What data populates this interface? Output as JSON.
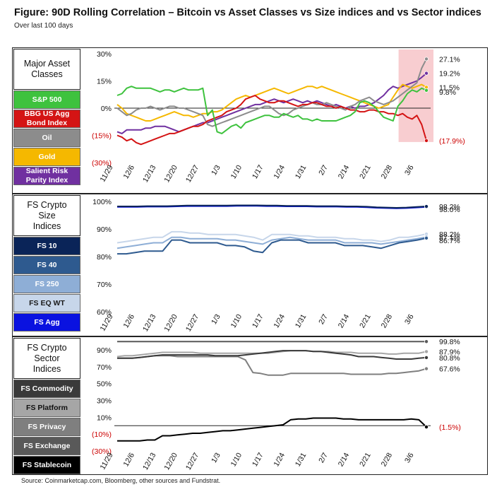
{
  "title": "Figure: 90D Rolling Correlation – Bitcoin vs Asset Classes vs Size indices and vs Sector indices",
  "subtitle": "Over last 100 days",
  "source": "Source: Coinmarketcap.com, Bloomberg, other sources and Fundstrat.",
  "colors": {
    "highlight": "#f8cdd0",
    "zero_line": "#222222"
  },
  "chart_data": [
    {
      "type": "line",
      "title": "Major Asset Classes",
      "x_tick_labels": [
        "11/29",
        "12/6",
        "12/13",
        "12/20",
        "12/27",
        "1/3",
        "1/10",
        "1/17",
        "1/24",
        "1/31",
        "2/7",
        "2/14",
        "2/21",
        "2/28",
        "3/6"
      ],
      "x_range": [
        0,
        100
      ],
      "y_range": [
        -30,
        30
      ],
      "y_ticks": [
        30,
        15,
        0,
        -15,
        -30
      ],
      "y_tick_labels": [
        "30%",
        "15%",
        "0%",
        "(15%)",
        "(30%)"
      ],
      "highlight_x_range": [
        91,
        100
      ],
      "end_labels": [
        {
          "text": "27.1%",
          "value": 27.1,
          "color": "#111111"
        },
        {
          "text": "19.2%",
          "value": 19.2,
          "color": "#111111"
        },
        {
          "text": "11.5%",
          "value": 11.5,
          "color": "#111111"
        },
        {
          "text": "9.8%",
          "value": 9.8,
          "color": "#111111"
        },
        {
          "text": "(17.9%)",
          "value": -17.9,
          "color": "#cc0000"
        }
      ],
      "series": [
        {
          "name": "S&P 500",
          "color": "#3ec23e",
          "text_color": "#ffffff",
          "values": [
            7,
            8,
            11,
            12,
            11,
            11,
            11,
            11,
            10,
            9,
            10,
            10,
            9,
            10,
            11,
            10,
            10,
            10,
            11,
            -4,
            -1,
            -13,
            -14,
            -12,
            -10,
            -9,
            -11,
            -8,
            -7,
            -6,
            -5,
            -4,
            -4,
            -5,
            -5,
            -3,
            -4,
            -5,
            -4,
            -6,
            -6,
            -7,
            -6,
            -7,
            -7,
            -7,
            -7,
            -6,
            -5,
            -4,
            -2,
            3,
            4,
            3,
            1,
            -2,
            -5,
            -6,
            -7,
            1,
            4,
            8,
            10,
            9,
            11,
            9.8
          ]
        },
        {
          "name": "BBG US Agg\nBond Index",
          "color": "#d41414",
          "text_color": "#ffffff",
          "values": [
            -15,
            -16,
            -18,
            -17,
            -19,
            -20,
            -19,
            -18,
            -17,
            -16,
            -15,
            -14,
            -14,
            -13,
            -12,
            -11,
            -10,
            -10,
            -9,
            -7,
            -6,
            -5,
            -4,
            -2,
            -1,
            0,
            2,
            5,
            6,
            7,
            5,
            4,
            3,
            3,
            4,
            4,
            3,
            2,
            1,
            2,
            2,
            3,
            3,
            2,
            1,
            1,
            0,
            1,
            0,
            -1,
            -1,
            -2,
            -2,
            -1,
            -1,
            -2,
            -2,
            -3,
            -3,
            -4,
            -3,
            -5,
            -6,
            -4,
            -9,
            -17.9
          ]
        },
        {
          "name": "Oil",
          "color": "#8c8c8c",
          "text_color": "#ffffff",
          "values": [
            0,
            -2,
            -4,
            -3,
            -1,
            0,
            0,
            1,
            0,
            -1,
            0,
            1,
            1,
            0,
            0,
            -1,
            -2,
            -3,
            -4,
            -9,
            -10,
            -9,
            -8,
            -7,
            -6,
            -5,
            -4,
            -3,
            -2,
            -1,
            0,
            1,
            1,
            -1,
            -3,
            -4,
            -3,
            -1,
            0,
            1,
            2,
            3,
            2,
            2,
            3,
            2,
            1,
            0,
            -1,
            1,
            2,
            4,
            5,
            6,
            4,
            3,
            2,
            3,
            4,
            6,
            8,
            10,
            12,
            14,
            22,
            27.1
          ]
        },
        {
          "name": "Gold",
          "color": "#f5b800",
          "text_color": "#ffffff",
          "values": [
            2,
            0,
            -3,
            -4,
            -5,
            -6,
            -7,
            -7,
            -6,
            -5,
            -4,
            -3,
            -2,
            -3,
            -4,
            -4,
            -5,
            -4,
            -3,
            -3,
            -2,
            -2,
            -1,
            1,
            3,
            5,
            6,
            7,
            6,
            7,
            8,
            9,
            10,
            11,
            10,
            9,
            8,
            9,
            10,
            11,
            12,
            12,
            11,
            12,
            11,
            10,
            9,
            8,
            7,
            6,
            5,
            4,
            3,
            2,
            1,
            0,
            1,
            2,
            6,
            10,
            13,
            12,
            11,
            12,
            13,
            11.5
          ]
        },
        {
          "name": "Salient Risk\nParity Index",
          "color": "#7030a0",
          "text_color": "#ffffff",
          "values": [
            -13,
            -14,
            -12,
            -12,
            -12,
            -12,
            -11,
            -11,
            -10,
            -10,
            -10,
            -11,
            -12,
            -13,
            -12,
            -11,
            -10,
            -9,
            -8,
            -8,
            -7,
            -6,
            -5,
            -4,
            -3,
            -2,
            -1,
            0,
            1,
            2,
            2,
            3,
            4,
            5,
            4,
            3,
            4,
            5,
            4,
            3,
            4,
            3,
            4,
            3,
            2,
            1,
            2,
            1,
            0,
            1,
            0,
            1,
            1,
            2,
            3,
            5,
            7,
            10,
            12,
            11,
            12,
            13,
            14,
            15,
            17,
            19.2
          ]
        }
      ]
    },
    {
      "type": "line",
      "title": "FS Crypto\nSize\nIndices",
      "x_tick_labels": [
        "11/29",
        "12/6",
        "12/13",
        "12/20",
        "12/27",
        "1/3",
        "1/10",
        "1/17",
        "1/24",
        "1/31",
        "2/7",
        "2/14",
        "2/21",
        "2/28",
        "3/6"
      ],
      "x_range": [
        0,
        100
      ],
      "y_range": [
        60,
        100
      ],
      "y_ticks": [
        100,
        90,
        80,
        70,
        60
      ],
      "y_tick_labels": [
        "100%",
        "90%",
        "80%",
        "70%",
        "60%"
      ],
      "end_labels": [
        {
          "text": "98.2%",
          "value": 98.2,
          "color": "#111111"
        },
        {
          "text": "98.0%",
          "value": 98.0,
          "color": "#111111"
        },
        {
          "text": "88.2%",
          "value": 88.2,
          "color": "#111111"
        },
        {
          "text": "87.1%",
          "value": 87.1,
          "color": "#111111"
        },
        {
          "text": "86.7%",
          "value": 86.7,
          "color": "#111111"
        }
      ],
      "series": [
        {
          "name": "FS 10",
          "color": "#0a2458",
          "text_color": "#ffffff",
          "values": [
            98.2,
            98.2,
            98.2,
            98.3,
            98.3,
            98.3,
            98.4,
            98.5,
            98.5,
            98.5,
            98.5,
            98.5,
            98.6,
            98.6,
            98.6,
            98.5,
            98.5,
            98.4,
            98.4,
            98.4,
            98.3,
            98.3,
            98.3,
            98.2,
            98.2,
            98.1,
            97.9,
            97.8,
            97.7,
            97.8,
            98.0,
            98.2
          ]
        },
        {
          "name": "FS 40",
          "color": "#2e5a8f",
          "text_color": "#ffffff",
          "values": [
            81,
            81,
            81.5,
            82,
            82,
            82,
            86,
            86,
            85,
            85,
            85,
            85,
            84,
            84,
            83.5,
            82,
            81.5,
            85,
            86,
            86,
            86,
            85,
            85,
            85,
            85,
            84,
            84,
            84,
            83.5,
            83,
            84,
            85,
            85.5,
            86,
            86.7
          ]
        },
        {
          "name": "FS 250",
          "color": "#8eaed6",
          "text_color": "#ffffff",
          "values": [
            83,
            83.5,
            84,
            84.5,
            85,
            85,
            87,
            87,
            86.5,
            86.5,
            86.5,
            86.5,
            86,
            86,
            85.5,
            85,
            84.5,
            86,
            86.5,
            87,
            86.5,
            86,
            86,
            86,
            86,
            85,
            85,
            85,
            85,
            84.5,
            85,
            85.5,
            86,
            86.5,
            87.1
          ]
        },
        {
          "name": "FS EQ WT",
          "color": "#c7d6ea",
          "text_color": "#1a1a1a",
          "values": [
            85,
            85.5,
            86,
            86.5,
            87,
            87,
            89,
            89,
            88.5,
            88.5,
            88,
            88,
            88,
            88,
            87.5,
            87,
            86,
            88,
            88,
            88,
            87.5,
            87.5,
            87,
            87,
            87,
            86.5,
            86.5,
            86,
            86,
            85.5,
            86,
            87,
            87,
            87.5,
            88.2
          ]
        },
        {
          "name": "FS Agg",
          "color": "#0a12e0",
          "text_color": "#ffffff",
          "values": [
            98.0,
            98.0,
            98.0,
            98.1,
            98.1,
            98.1,
            98.2,
            98.3,
            98.3,
            98.3,
            98.3,
            98.3,
            98.4,
            98.4,
            98.4,
            98.3,
            98.3,
            98.2,
            98.2,
            98.2,
            98.1,
            98.1,
            98.1,
            98.0,
            98.0,
            97.9,
            97.7,
            97.6,
            97.5,
            97.6,
            97.8,
            98.0
          ]
        }
      ]
    },
    {
      "type": "line",
      "title": "FS Crypto\nSector\nIndices",
      "x_tick_labels": [
        "11/29",
        "12/6",
        "12/13",
        "12/20",
        "12/27",
        "1/3",
        "1/10",
        "1/17",
        "1/24",
        "1/31",
        "2/7",
        "2/14",
        "2/21",
        "2/28",
        "3/6"
      ],
      "x_range": [
        0,
        100
      ],
      "y_range": [
        -30,
        100
      ],
      "y_ticks": [
        90,
        70,
        50,
        30,
        10,
        -10,
        -30
      ],
      "y_tick_labels": [
        "90%",
        "70%",
        "50%",
        "30%",
        "10%",
        "(10%)",
        "(30%)"
      ],
      "end_labels": [
        {
          "text": "99.8%",
          "value": 99.8,
          "color": "#111111"
        },
        {
          "text": "87.9%",
          "value": 87.9,
          "color": "#111111"
        },
        {
          "text": "80.8%",
          "value": 80.8,
          "color": "#111111"
        },
        {
          "text": "67.6%",
          "value": 67.6,
          "color": "#111111"
        },
        {
          "text": "(1.5%)",
          "value": -1.5,
          "color": "#cc0000"
        }
      ],
      "series": [
        {
          "name": "FS Commodity",
          "color": "#3a3a3a",
          "text_color": "#ffffff",
          "values": [
            80,
            80,
            80,
            81,
            82,
            83,
            84,
            84,
            84,
            84,
            84,
            84,
            84,
            83,
            83,
            83,
            83,
            84,
            85,
            86,
            87,
            88,
            89,
            89,
            89,
            89,
            88,
            88,
            87,
            86,
            85,
            84,
            82,
            82,
            82,
            81,
            80,
            79,
            79,
            79,
            80,
            80.8
          ]
        },
        {
          "name": "FS Platform",
          "color": "#a6a6a6",
          "text_color": "#111111",
          "values": [
            82,
            83,
            83,
            84,
            85,
            86,
            87,
            87,
            87,
            87,
            87,
            86,
            86,
            86,
            86,
            86,
            86,
            86,
            86,
            86,
            86,
            87,
            88,
            89,
            89,
            89,
            88,
            88,
            88,
            87,
            87,
            87,
            86,
            86,
            86,
            86,
            85,
            85,
            86,
            86,
            86,
            87.9
          ]
        },
        {
          "name": "FS Privacy",
          "color": "#7f7f7f",
          "text_color": "#ffffff",
          "values": [
            80,
            80,
            80,
            81,
            82,
            83,
            83,
            83,
            82,
            82,
            82,
            82,
            82,
            82,
            82,
            82,
            82,
            78,
            63,
            62,
            60,
            60,
            60,
            62,
            62,
            62,
            62,
            62,
            62,
            62,
            62,
            61,
            61,
            61,
            61,
            61,
            62,
            62,
            63,
            64,
            65,
            67.6
          ]
        },
        {
          "name": "FS Exchange",
          "color": "#595959",
          "text_color": "#ffffff",
          "values": [
            99.8,
            99.8,
            99.8,
            99.8,
            99.8,
            99.8,
            99.8,
            99.8,
            99.8,
            99.8,
            99.8,
            99.8,
            99.8,
            99.8,
            99.8,
            99.8,
            99.8,
            99.8,
            99.8,
            99.8,
            99.8,
            99.8,
            99.8,
            99.8,
            99.8,
            99.8,
            99.8,
            99.8,
            99.8,
            99.8,
            99.8,
            99.8,
            99.8,
            99.8,
            99.8,
            99.8,
            99.8,
            99.8,
            99.8,
            99.8,
            99.8,
            99.8
          ]
        },
        {
          "name": "FS Stablecoin",
          "color": "#000000",
          "text_color": "#ffffff",
          "values": [
            -18,
            -18,
            -18,
            -18,
            -17,
            -17,
            -12,
            -12,
            -11,
            -10,
            -9,
            -9,
            -8,
            -7,
            -6,
            -6,
            -5,
            -4,
            -3,
            -2,
            -1,
            0,
            1,
            7,
            8,
            8,
            9,
            9,
            9,
            9,
            8,
            8,
            7,
            7,
            7,
            7,
            7,
            7,
            7,
            8,
            7,
            -1.5
          ]
        }
      ]
    }
  ]
}
